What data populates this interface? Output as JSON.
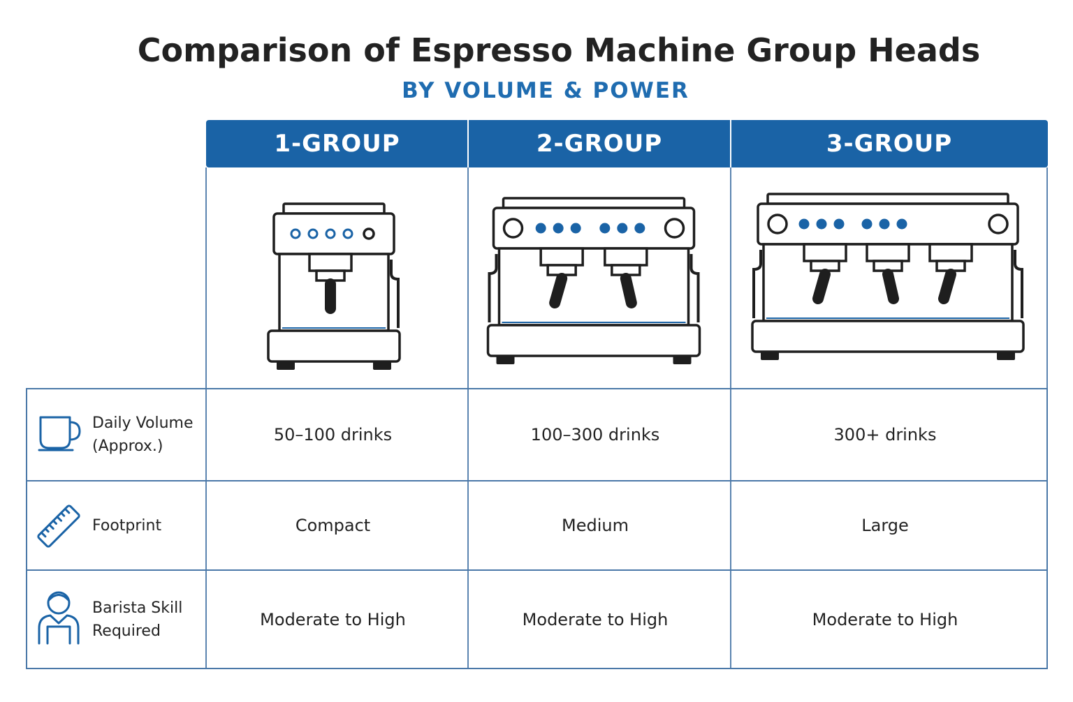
{
  "header": {
    "title": "Comparison of Espresso Machine Group Heads",
    "subtitle": "BY VOLUME & POWER"
  },
  "table": {
    "columns": [
      "1-GROUP",
      "2-GROUP",
      "3-GROUP"
    ],
    "rows": [
      {
        "label": "Daily Volume (Approx.)",
        "values": [
          "50–100 drinks",
          "100–300 drinks",
          "300+ drinks"
        ]
      },
      {
        "label": "Footprint",
        "values": [
          "Compact",
          "Medium",
          "Large"
        ]
      },
      {
        "label": "Barista Skill Required",
        "values": [
          "Moderate to High",
          "Moderate to High",
          "Moderate to High"
        ]
      }
    ]
  }
}
